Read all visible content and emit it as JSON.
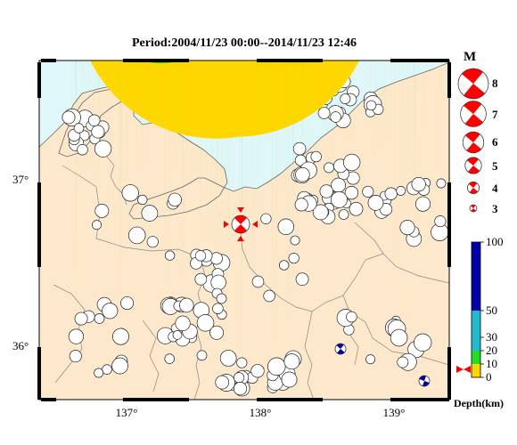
{
  "header": {
    "title": "Period:2004/11/23 00:00--2014/11/23 12:46"
  },
  "map": {
    "lat_labels": [
      "37°",
      "36°"
    ],
    "lon_labels": [
      "137°",
      "138°",
      "139°"
    ],
    "colors": {
      "sea": "#e0f7fa",
      "land": "#fde8cc",
      "border": "#888888",
      "coast": "#666666"
    }
  },
  "magnitude_legend": {
    "title": "M",
    "items": [
      {
        "label": "8",
        "value": 8
      },
      {
        "label": "7",
        "value": 7
      },
      {
        "label": "6",
        "value": 6
      },
      {
        "label": "5",
        "value": 5
      },
      {
        "label": "4",
        "value": 4
      },
      {
        "label": "3",
        "value": 3
      }
    ]
  },
  "depth_legend": {
    "title": "Depth(km)",
    "ticks": [
      "100",
      "50",
      "30",
      "20",
      "10",
      "0"
    ],
    "colors": {
      "d0_10": "#ffd700",
      "d10_20": "#22dd22",
      "d20_50": "#22bbcc",
      "d50_100": "#0000aa"
    }
  },
  "highlight_event": {
    "color": "#ff0000",
    "marker": "red-triangles-marker"
  }
}
